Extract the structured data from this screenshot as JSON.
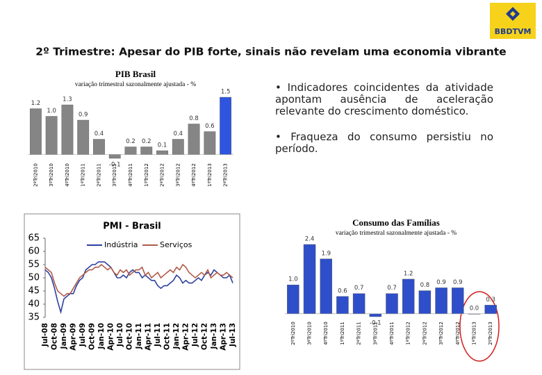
{
  "logo": "BBDTVM",
  "title": "2º Trimestre: Apesar do PIB forte, sinais não revelam uma economia vibrante",
  "bullets": [
    "• Indicadores coincidentes da atividade apontam ausência de aceleração relevante do crescimento doméstico.",
    "• Fraqueza do consumo persistiu no período."
  ],
  "chart_data": [
    {
      "type": "bar",
      "title": "PIB Brasil",
      "subtitle": "variação trimestral sazonalmente ajustada - %",
      "categories": [
        "2ºTri2010",
        "3ºTri2010",
        "4ºTri2010",
        "1ºTri2011",
        "2ºTri2011",
        "3ºTri2011",
        "4ºTri2011",
        "1ºTri2012",
        "2ºTri2012",
        "3ºTri2012",
        "4ºTri2012",
        "1ºTri2013",
        "2ºTri2013"
      ],
      "values": [
        1.2,
        1.0,
        1.3,
        0.9,
        0.4,
        -0.1,
        0.2,
        0.2,
        0.1,
        0.4,
        0.8,
        0.6,
        1.5
      ],
      "value_labels": [
        "1.2",
        "1.0",
        "1.3",
        "0.9",
        "0.4",
        "-0.1",
        "0.2",
        "0.2",
        "0.1",
        "0.4",
        "0.8",
        "0.6",
        "1.5"
      ],
      "colors": [
        "#858585",
        "#858585",
        "#858585",
        "#858585",
        "#858585",
        "#858585",
        "#858585",
        "#858585",
        "#858585",
        "#858585",
        "#858585",
        "#858585",
        "#2f55e0"
      ]
    },
    {
      "type": "line",
      "title": "PMI - Brasil",
      "categories": [
        "Jul-08",
        null,
        null,
        "Oct-08",
        null,
        null,
        "Jan-09",
        null,
        null,
        "Apr-09",
        null,
        null,
        "Jul-09",
        null,
        null,
        "Oct-09",
        null,
        null,
        "Jan-10",
        null,
        null,
        "Apr-10",
        null,
        null,
        "Jul-10",
        null,
        null,
        "Oct-10",
        null,
        null,
        "Jan-11",
        null,
        null,
        "Apr-11",
        null,
        null,
        "Jul-11",
        null,
        null,
        "Oct-11",
        null,
        null,
        "Jan-12",
        null,
        null,
        "Apr-12",
        null,
        null,
        "Jul-12",
        null,
        null,
        "Oct-12",
        null,
        null,
        "Jan-13",
        null,
        null,
        "Apr-13",
        null,
        null,
        "Jul-13"
      ],
      "series": [
        {
          "name": "Indústria",
          "color": "#2b3f9e",
          "values": [
            53,
            52,
            50,
            46,
            41,
            37,
            42,
            43,
            44,
            44,
            47,
            49,
            50,
            53,
            54,
            55,
            55,
            56,
            56,
            56,
            55,
            54,
            52,
            50,
            50,
            51,
            50,
            52,
            53,
            52,
            52,
            50,
            51,
            50,
            49,
            49,
            47,
            46,
            47,
            47,
            48,
            49,
            51,
            50,
            48,
            49,
            48,
            48,
            49,
            50,
            49,
            51,
            52,
            51,
            53,
            52,
            51,
            50,
            50,
            51,
            48
          ]
        },
        {
          "name": "Serviços",
          "color": "#b05a48",
          "values": [
            54,
            53,
            52,
            48,
            45,
            44,
            43,
            44,
            44,
            46,
            48,
            50,
            51,
            52,
            53,
            53,
            54,
            54,
            55,
            54,
            53,
            54,
            52,
            51,
            53,
            52,
            53,
            51,
            52,
            53,
            53,
            54,
            51,
            52,
            50,
            51,
            52,
            50,
            51,
            52,
            53,
            52,
            54,
            53,
            55,
            54,
            52,
            51,
            50,
            51,
            52,
            51,
            53,
            50,
            51,
            52,
            51,
            51,
            52,
            51,
            50
          ]
        }
      ],
      "ylim": [
        35,
        65
      ],
      "yticks": [
        35,
        40,
        45,
        50,
        55,
        60,
        65
      ]
    },
    {
      "type": "bar",
      "title": "Consumo das Famílias",
      "subtitle": "variação trimestral sazonalmente ajustada - %",
      "categories": [
        "2ºTri2010",
        "3ºTri2010",
        "4ºTri2010",
        "1ºTri2011",
        "2ºTri2011",
        "3ºTri2011",
        "4ºTri2011",
        "1ºTri2012",
        "2ºTri2012",
        "3ºTri2012",
        "4ºTri2012",
        "1ºTri2013",
        "2ºTri2013"
      ],
      "values": [
        1.0,
        2.4,
        1.9,
        0.6,
        0.7,
        -0.1,
        0.7,
        1.2,
        0.8,
        0.9,
        0.9,
        0.0,
        0.3
      ],
      "value_labels": [
        "1.0",
        "2.4",
        "1.9",
        "0.6",
        "0.7",
        "-0.1",
        "0.7",
        "1.2",
        "0.8",
        "0.9",
        "0.9",
        "0.0",
        "0.3"
      ],
      "color": "#2e4fc9"
    }
  ]
}
